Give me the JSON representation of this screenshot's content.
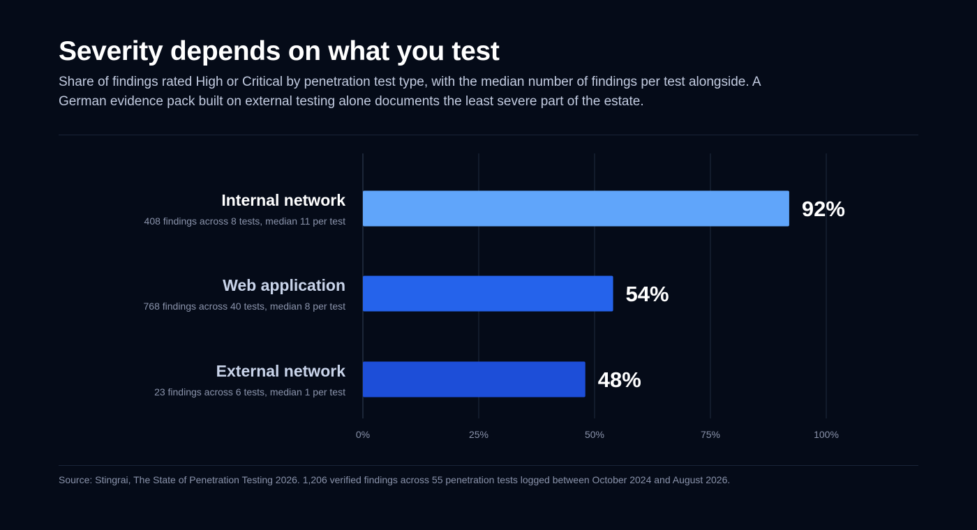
{
  "header": {
    "title": "Severity depends on what you test",
    "subtitle": "Share of findings rated High or Critical by penetration test type, with the median number of findings per test alongside. A German evidence pack built on external testing alone documents the least severe part of the estate."
  },
  "chart_data": {
    "type": "bar",
    "orientation": "horizontal",
    "title": "Severity depends on what you test",
    "xlabel": "",
    "ylabel": "",
    "xlim": [
      0,
      100
    ],
    "grid": true,
    "value_suffix": "%",
    "ticks": [
      {
        "value": 0,
        "label": "0%"
      },
      {
        "value": 25,
        "label": "25%"
      },
      {
        "value": 50,
        "label": "50%"
      },
      {
        "value": 75,
        "label": "75%"
      },
      {
        "value": 100,
        "label": "100%"
      }
    ],
    "categories": [
      "Internal network",
      "Web application",
      "External network"
    ],
    "descriptions": [
      "408 findings across 8 tests, median 11 per test",
      "768 findings across 40 tests, median 8 per test",
      "23 findings across 6 tests, median 1 per test"
    ],
    "values": [
      92,
      54,
      48
    ],
    "value_labels": [
      "92%",
      "54%",
      "48%"
    ],
    "colors": [
      "#60a5fa",
      "#2563eb",
      "#1d4ed8"
    ],
    "label_colors": [
      "#ffffff",
      "#c9d4ea",
      "#c9d4ea"
    ]
  },
  "footer": {
    "source": "Source: Stingrai, The State of Penetration Testing 2026. 1,206 verified findings across 55 penetration tests logged between October 2024 and August 2026."
  }
}
